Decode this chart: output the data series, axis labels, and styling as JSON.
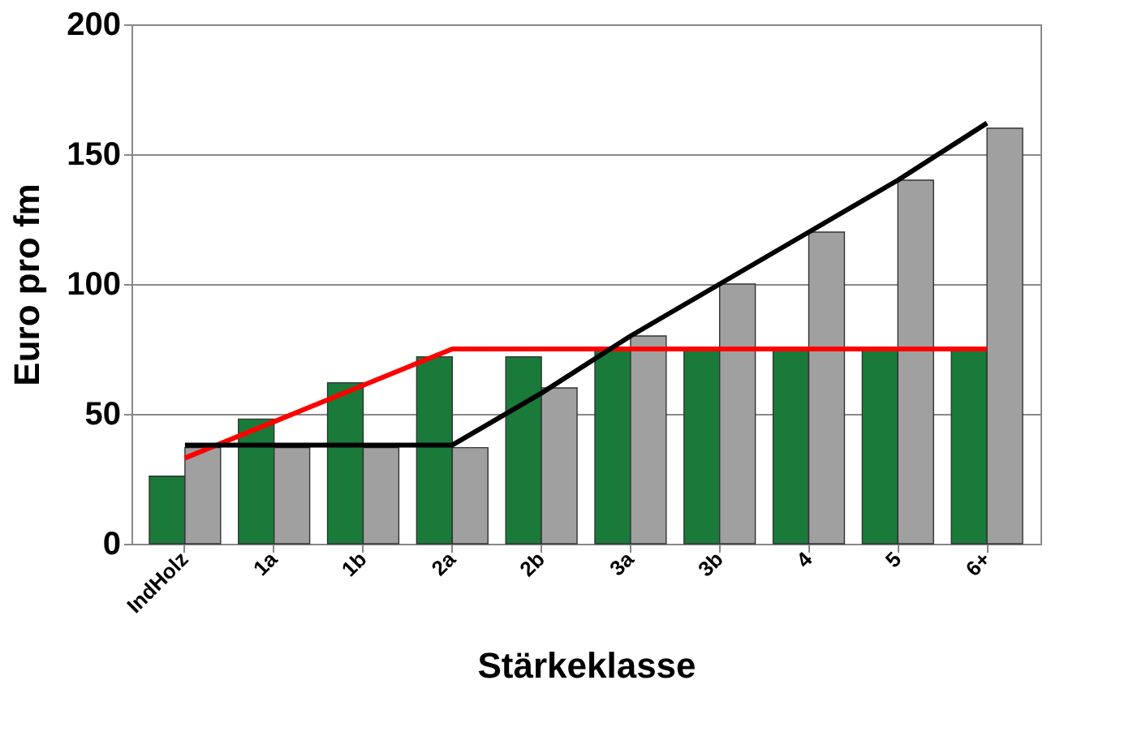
{
  "chart_data": {
    "type": "bar",
    "xlabel": "Stärkeklasse",
    "ylabel": "Euro pro fm",
    "categories": [
      "IndHolz",
      "1a",
      "1b",
      "2a",
      "2b",
      "3a",
      "3b",
      "4",
      "5",
      "6+"
    ],
    "series": [
      {
        "type": "bar",
        "color": "#1a7a3a",
        "values": [
          26,
          48,
          62,
          72,
          72,
          75,
          75,
          75,
          75,
          75
        ]
      },
      {
        "type": "bar",
        "color": "#a0a0a0",
        "values": [
          37,
          37,
          37,
          37,
          60,
          80,
          100,
          120,
          140,
          160
        ]
      },
      {
        "type": "line",
        "color": "#ff0000",
        "values": [
          33,
          47,
          61,
          75,
          75,
          75,
          75,
          75,
          75,
          75
        ]
      },
      {
        "type": "line",
        "color": "#000000",
        "values": [
          38,
          38,
          38,
          38,
          58,
          80,
          100,
          120,
          140,
          162
        ]
      }
    ],
    "ylim": [
      0,
      200
    ],
    "yticks": [
      0,
      50,
      100,
      150,
      200
    ],
    "grid": "y",
    "legend": false
  }
}
